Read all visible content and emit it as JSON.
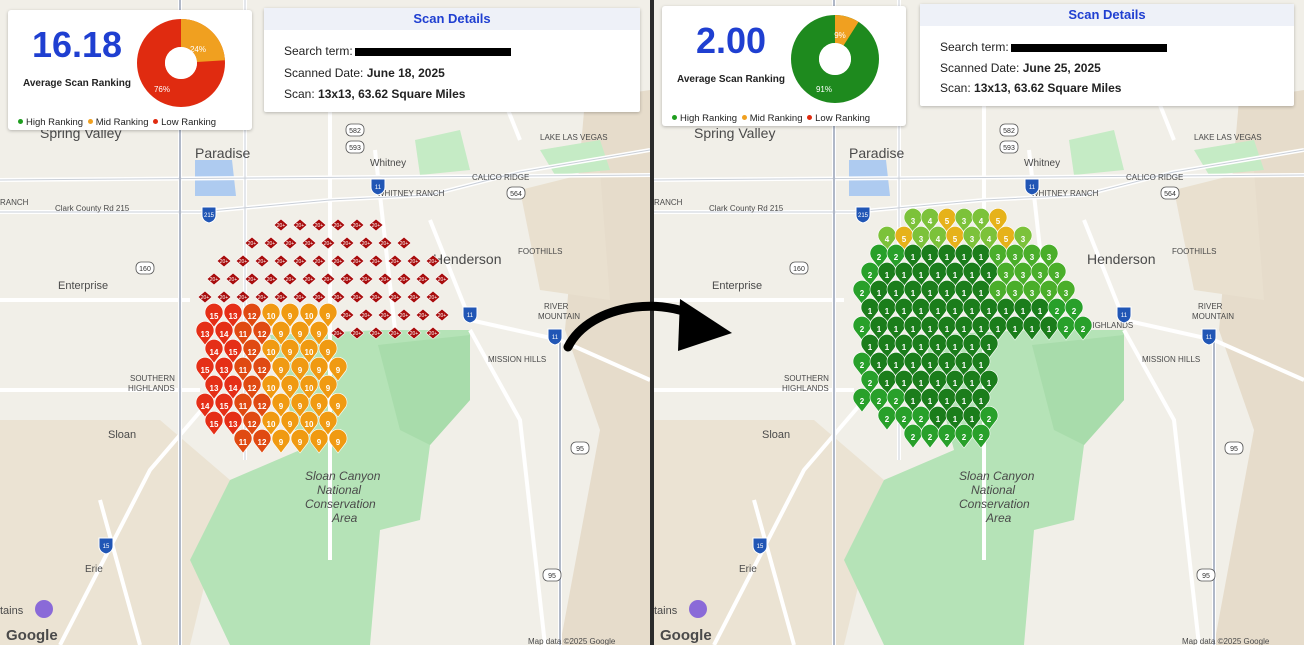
{
  "before": {
    "average": "16.18",
    "average_label": "Average Scan Ranking",
    "pie": {
      "mid_pct": 24,
      "low_pct": 76,
      "mid_label": "24%",
      "low_label": "76%"
    },
    "legend": [
      "High Ranking",
      "Mid Ranking",
      "Low Ranking"
    ],
    "details_title": "Scan Details",
    "search_term_label": "Search term:",
    "scanned_date_label": "Scanned Date:",
    "scanned_date": "June 18, 2025",
    "scan_label": "Scan:",
    "scan_value": "13x13, 63.62 Square Miles",
    "map_credit": "Map data ©2025 Google",
    "google": "Google"
  },
  "after": {
    "average": "2.00",
    "average_label": "Average Scan Ranking",
    "pie": {
      "high_pct": 91,
      "mid_pct": 9,
      "mid_label": "9%",
      "high_label": "91%"
    },
    "legend": [
      "High Ranking",
      "Mid Ranking",
      "Low Ranking"
    ],
    "details_title": "Scan Details",
    "search_term_label": "Search term:",
    "scanned_date_label": "Scanned Date:",
    "scanned_date": "June 25, 2025",
    "scan_label": "Scan:",
    "scan_value": "13x13, 63.62 Square Miles",
    "map_credit": "Map data ©2025 Google",
    "google": "Google"
  },
  "map_labels": {
    "spring_valley": "Spring Valley",
    "paradise": "Paradise",
    "whitney": "Whitney",
    "whitney_ranch": "WHITNEY RANCH",
    "lake_las_vegas": "LAKE LAS VEGAS",
    "calico_ridge": "CALICO RIDGE",
    "ranch": "RANCH",
    "clark_county": "Clark County Rd 215",
    "henderson": "Henderson",
    "foothills": "FOOTHILLS",
    "enterprise": "Enterprise",
    "river_mountain": "RIVER MOUNTAIN",
    "mission_hills": "MISSION HILLS",
    "southern_highlands": "SOUTHERN HIGHLANDS",
    "sloan": "Sloan",
    "sloan_canyon": "Sloan Canyon National Conservation Area",
    "erie": "Erie",
    "mcdonald_highlands": "DONALD HIGHLANDS",
    "mountains": "tains",
    "route_215": "215",
    "route_582": "582",
    "route_593": "593",
    "route_564": "564",
    "route_160": "160",
    "route_11": "11",
    "route_15": "15",
    "route_95": "95"
  },
  "colors": {
    "high": "#1e9e1e",
    "mid": "#f0a020",
    "low": "#e02b10",
    "accent": "#1f3fd1",
    "park": "#b5e3b7",
    "water": "#aecbf0"
  }
}
